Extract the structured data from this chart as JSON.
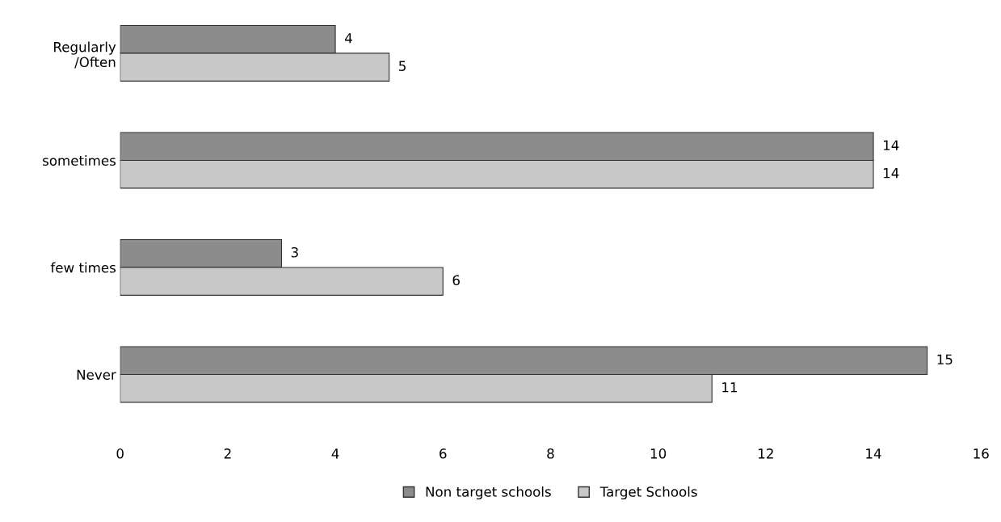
{
  "chart_data": {
    "type": "bar",
    "orientation": "horizontal",
    "categories": [
      "Regularly\n/Often",
      "sometimes",
      "few times",
      "Never"
    ],
    "series": [
      {
        "name": "Non target schools",
        "color": "#8c8c8c",
        "values": [
          4,
          14,
          3,
          15
        ]
      },
      {
        "name": "Target Schools",
        "color": "#c8c8c8",
        "values": [
          5,
          14,
          6,
          11
        ]
      }
    ],
    "xlim": [
      0,
      16
    ],
    "xticks": [
      0,
      2,
      4,
      6,
      8,
      10,
      12,
      14,
      16
    ],
    "data_labels": true,
    "grid": false,
    "legend": "bottom"
  }
}
